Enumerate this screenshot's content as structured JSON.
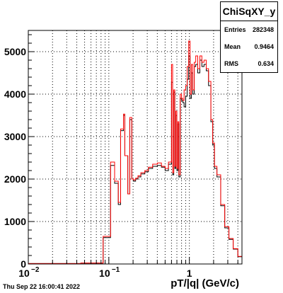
{
  "chart_data": {
    "type": "histogram",
    "title": "ChiSqXY_y",
    "xlabel": "pT/|q| (GeV/c)",
    "ylabel": "",
    "x_scale": "log",
    "xlim": [
      0.01,
      4.5
    ],
    "ylim": [
      0,
      5500
    ],
    "grid": true,
    "x_tick_labels": [
      {
        "value": 0.01,
        "label": "10",
        "sup": "−2"
      },
      {
        "value": 0.1,
        "label": "10",
        "sup": "−1"
      },
      {
        "value": 1,
        "label": "1",
        "sup": ""
      }
    ],
    "y_ticks": [
      0,
      1000,
      2000,
      3000,
      4000,
      5000
    ],
    "stats": {
      "name": "ChiSqXY_y",
      "rows": [
        {
          "label": "Entries",
          "value": "282348"
        },
        {
          "label": "Mean",
          "value": "0.9464"
        },
        {
          "label": "RMS",
          "value": "0.634"
        }
      ]
    },
    "timestamp": "Thu Sep 22 16:00:41 2022",
    "series": [
      {
        "color": "#000000",
        "bins": [
          [
            0.01,
            0.045,
            10
          ],
          [
            0.045,
            0.085,
            20
          ],
          [
            0.085,
            0.105,
            620
          ],
          [
            0.105,
            0.118,
            2320
          ],
          [
            0.118,
            0.131,
            1900
          ],
          [
            0.131,
            0.14,
            1400
          ],
          [
            0.14,
            0.152,
            3140
          ],
          [
            0.152,
            0.158,
            3500
          ],
          [
            0.158,
            0.172,
            2550
          ],
          [
            0.172,
            0.182,
            1650
          ],
          [
            0.182,
            0.193,
            3400
          ],
          [
            0.193,
            0.203,
            2000
          ],
          [
            0.203,
            0.215,
            1950
          ],
          [
            0.215,
            0.23,
            2000
          ],
          [
            0.23,
            0.25,
            2050
          ],
          [
            0.25,
            0.28,
            2120
          ],
          [
            0.28,
            0.31,
            2170
          ],
          [
            0.31,
            0.35,
            2250
          ],
          [
            0.35,
            0.4,
            2300
          ],
          [
            0.4,
            0.45,
            2320
          ],
          [
            0.45,
            0.5,
            2280
          ],
          [
            0.5,
            0.55,
            2200
          ],
          [
            0.55,
            0.6,
            2350
          ],
          [
            0.6,
            0.62,
            4280
          ],
          [
            0.62,
            0.64,
            2100
          ],
          [
            0.64,
            0.66,
            4050
          ],
          [
            0.66,
            0.68,
            2250
          ],
          [
            0.68,
            0.7,
            3500
          ],
          [
            0.7,
            0.72,
            2200
          ],
          [
            0.72,
            0.74,
            3300
          ],
          [
            0.74,
            0.77,
            2050
          ],
          [
            0.77,
            0.8,
            3900
          ],
          [
            0.8,
            0.83,
            3850
          ],
          [
            0.83,
            0.86,
            3800
          ],
          [
            0.86,
            0.9,
            3700
          ],
          [
            0.9,
            0.94,
            3950
          ],
          [
            0.94,
            0.98,
            4350
          ],
          [
            0.98,
            1.02,
            4900
          ],
          [
            1.02,
            1.06,
            3900
          ],
          [
            1.06,
            1.1,
            4500
          ],
          [
            1.1,
            1.15,
            4000
          ],
          [
            1.15,
            1.2,
            4650
          ],
          [
            1.2,
            1.27,
            4700
          ],
          [
            1.27,
            1.35,
            4500
          ],
          [
            1.35,
            1.43,
            4800
          ],
          [
            1.43,
            1.52,
            4650
          ],
          [
            1.52,
            1.62,
            4700
          ],
          [
            1.62,
            1.73,
            4550
          ],
          [
            1.73,
            1.85,
            4200
          ],
          [
            1.85,
            1.95,
            3350
          ],
          [
            1.95,
            2.05,
            2800
          ],
          [
            2.05,
            2.2,
            2250
          ],
          [
            2.2,
            2.45,
            2050
          ],
          [
            2.45,
            2.75,
            1370
          ],
          [
            2.75,
            3.1,
            850
          ],
          [
            3.1,
            3.5,
            580
          ],
          [
            3.5,
            4.0,
            350
          ],
          [
            4.0,
            4.5,
            170
          ]
        ]
      },
      {
        "color": "#ff0000",
        "bins": [
          [
            0.01,
            0.045,
            10
          ],
          [
            0.045,
            0.085,
            20
          ],
          [
            0.085,
            0.105,
            650
          ],
          [
            0.105,
            0.118,
            2400
          ],
          [
            0.118,
            0.131,
            1950
          ],
          [
            0.131,
            0.14,
            1450
          ],
          [
            0.14,
            0.152,
            3180
          ],
          [
            0.152,
            0.158,
            3530
          ],
          [
            0.158,
            0.172,
            2550
          ],
          [
            0.172,
            0.182,
            1650
          ],
          [
            0.182,
            0.193,
            3450
          ],
          [
            0.193,
            0.203,
            2000
          ],
          [
            0.203,
            0.215,
            1980
          ],
          [
            0.215,
            0.23,
            2020
          ],
          [
            0.23,
            0.25,
            2080
          ],
          [
            0.25,
            0.28,
            2150
          ],
          [
            0.28,
            0.31,
            2200
          ],
          [
            0.31,
            0.35,
            2280
          ],
          [
            0.35,
            0.4,
            2350
          ],
          [
            0.4,
            0.45,
            2380
          ],
          [
            0.45,
            0.5,
            2300
          ],
          [
            0.5,
            0.55,
            2250
          ],
          [
            0.55,
            0.6,
            2400
          ],
          [
            0.6,
            0.62,
            4700
          ],
          [
            0.62,
            0.64,
            2150
          ],
          [
            0.64,
            0.66,
            4100
          ],
          [
            0.66,
            0.68,
            2300
          ],
          [
            0.68,
            0.7,
            3600
          ],
          [
            0.7,
            0.72,
            2250
          ],
          [
            0.72,
            0.74,
            3350
          ],
          [
            0.74,
            0.77,
            2100
          ],
          [
            0.77,
            0.8,
            4000
          ],
          [
            0.8,
            0.83,
            3900
          ],
          [
            0.83,
            0.86,
            3850
          ],
          [
            0.86,
            0.9,
            4100
          ],
          [
            0.9,
            0.94,
            4200
          ],
          [
            0.94,
            0.98,
            4650
          ],
          [
            0.98,
            1.02,
            5250
          ],
          [
            1.02,
            1.06,
            4000
          ],
          [
            1.06,
            1.1,
            4700
          ],
          [
            1.1,
            1.15,
            4100
          ],
          [
            1.15,
            1.2,
            4750
          ],
          [
            1.2,
            1.27,
            4900
          ],
          [
            1.27,
            1.35,
            4600
          ],
          [
            1.35,
            1.43,
            4900
          ],
          [
            1.43,
            1.52,
            4750
          ],
          [
            1.52,
            1.62,
            4800
          ],
          [
            1.62,
            1.73,
            4600
          ],
          [
            1.73,
            1.85,
            4300
          ],
          [
            1.85,
            1.95,
            3400
          ],
          [
            1.95,
            2.05,
            2850
          ],
          [
            2.05,
            2.2,
            2300
          ],
          [
            2.2,
            2.45,
            2100
          ],
          [
            2.45,
            2.75,
            1400
          ],
          [
            2.75,
            3.1,
            880
          ],
          [
            3.1,
            3.5,
            600
          ],
          [
            3.5,
            4.0,
            360
          ],
          [
            4.0,
            4.5,
            180
          ]
        ]
      }
    ]
  }
}
